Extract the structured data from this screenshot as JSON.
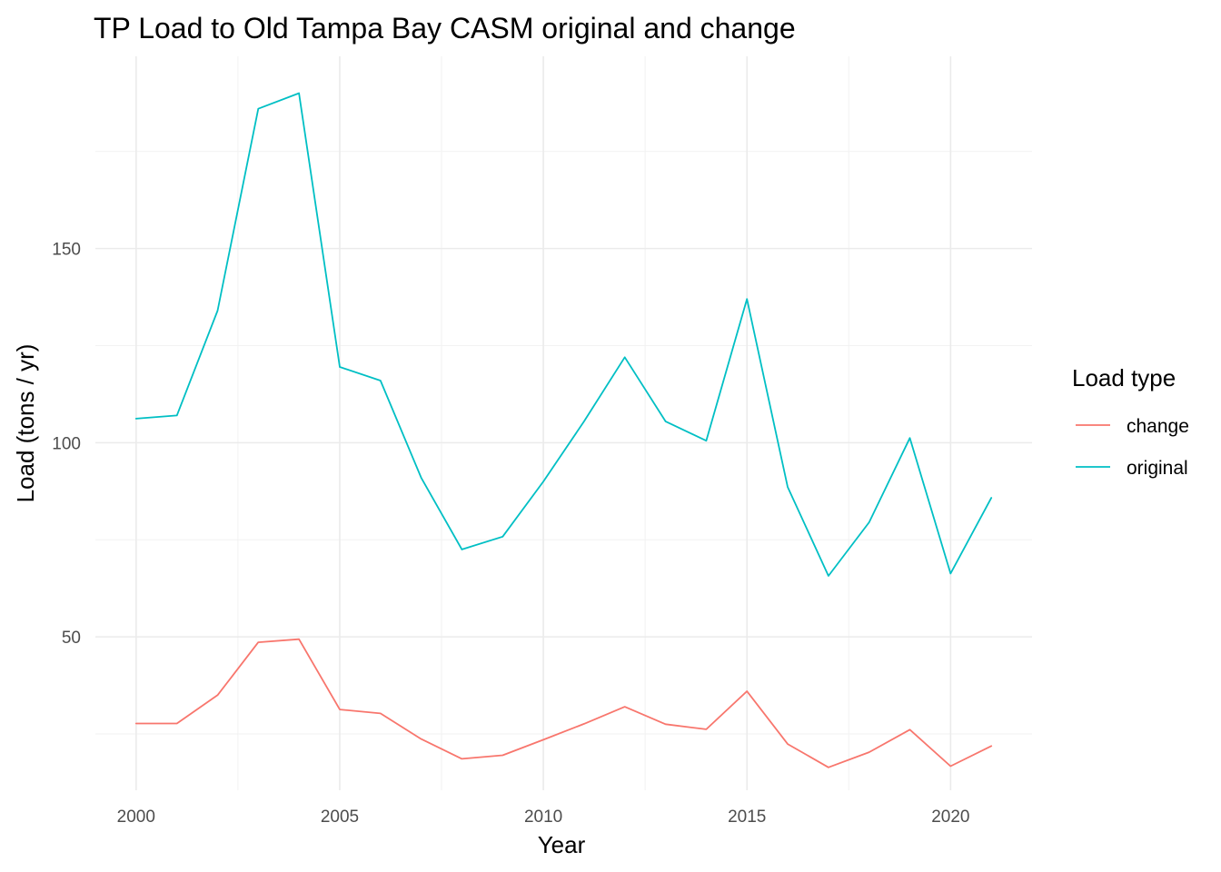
{
  "chart_data": {
    "type": "line",
    "title": "TP Load to Old Tampa Bay CASM original and change",
    "xlabel": "Year",
    "ylabel": "Load (tons / yr)",
    "x": [
      2000,
      2001,
      2002,
      2003,
      2004,
      2005,
      2006,
      2007,
      2008,
      2009,
      2010,
      2011,
      2012,
      2013,
      2014,
      2015,
      2016,
      2017,
      2018,
      2019,
      2020,
      2021
    ],
    "xlim": [
      1999.0,
      2022.0
    ],
    "ylim": [
      10.5,
      199.5
    ],
    "x_ticks": [
      2000,
      2005,
      2010,
      2015,
      2020
    ],
    "y_ticks": [
      50,
      100,
      150
    ],
    "x_tick_labels": [
      "2000",
      "2005",
      "2010",
      "2015",
      "2020"
    ],
    "y_tick_labels": [
      "50",
      "100",
      "150"
    ],
    "grid": true,
    "legend_position": "right",
    "legend_title": "Load type",
    "series": [
      {
        "name": "change",
        "color": "#F8766D",
        "values": [
          27.7,
          27.7,
          35.0,
          48.6,
          49.4,
          31.3,
          30.3,
          23.7,
          18.6,
          19.5,
          23.5,
          27.6,
          32.0,
          27.5,
          26.2,
          36.0,
          22.4,
          16.4,
          20.3,
          26.1,
          16.7,
          21.9
        ]
      },
      {
        "name": "original",
        "color": "#00BFC4",
        "values": [
          106.2,
          107.0,
          134.0,
          186.0,
          190.0,
          119.5,
          116.0,
          91.0,
          72.5,
          75.8,
          90.0,
          105.5,
          122.0,
          105.5,
          100.5,
          137.0,
          88.6,
          65.7,
          79.5,
          101.2,
          66.3,
          85.8
        ]
      }
    ]
  }
}
